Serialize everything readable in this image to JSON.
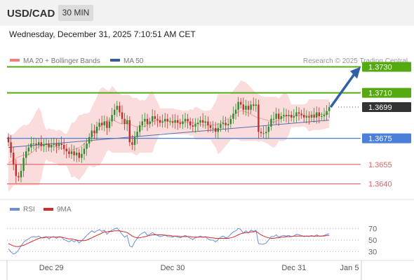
{
  "header": {
    "symbol": "USD/CAD",
    "timeframe": "30 MIN",
    "datetime": "Wednesday, December 31, 2025 7:10:51 AM CET"
  },
  "colors": {
    "price_line_green": "#55aa11",
    "support_blue": "#4a7fdc",
    "support_red": "#e06060",
    "candle_up": "#2e8b2e",
    "candle_down": "#c0302a",
    "bollinger_fill": "#f9d6d6",
    "ma50": "#5a6fa8",
    "arrow": "#2f5fa5",
    "rsi_line": "#6a8fd8",
    "rsi_ma": "#d22a2a",
    "current_price_bg": "#333333"
  },
  "chart_data": [
    {
      "type": "candlestick",
      "legend": [
        {
          "name": "MA 20 + Bollinger Bands",
          "color": "#f08080"
        },
        {
          "name": "MA 50",
          "color": "#3a5a9a"
        }
      ],
      "attribution": "Research © 2025 Trading Central",
      "ylim": [
        1.3628,
        1.3741
      ],
      "x_ticks": [
        {
          "label": "Dec 29",
          "index": 17
        },
        {
          "label": "Dec 30",
          "index": 65
        },
        {
          "label": "Dec 31",
          "index": 113
        },
        {
          "label": "Jan 5",
          "index": 135
        }
      ],
      "levels": [
        {
          "value": 1.373,
          "label": "1.3730",
          "kind": "resistance",
          "color": "#55aa11",
          "style": "label"
        },
        {
          "value": 1.371,
          "label": "1.3710",
          "kind": "resistance",
          "color": "#55aa11",
          "style": "label"
        },
        {
          "value": 1.3699,
          "label": "1.3699",
          "kind": "current",
          "color": "#333333",
          "style": "label"
        },
        {
          "value": 1.3675,
          "label": "1.3675",
          "kind": "support",
          "color": "#4a7fdc",
          "style": "label"
        },
        {
          "value": 1.3655,
          "label": "1.3655",
          "kind": "support",
          "color": "#e06060",
          "style": "text"
        },
        {
          "value": 1.364,
          "label": "1.3640",
          "kind": "support",
          "color": "#e06060",
          "style": "text"
        }
      ],
      "closes": [
        1.3672,
        1.3664,
        1.3655,
        1.3646,
        1.3645,
        1.365,
        1.366,
        1.3665,
        1.3668,
        1.3671,
        1.3671,
        1.367,
        1.3672,
        1.3669,
        1.367,
        1.3671,
        1.3668,
        1.367,
        1.3671,
        1.3669,
        1.3671,
        1.367,
        1.3667,
        1.3665,
        1.3663,
        1.3665,
        1.3662,
        1.3664,
        1.366,
        1.3663,
        1.3667,
        1.3671,
        1.3676,
        1.3681,
        1.3679,
        1.3684,
        1.3687,
        1.3685,
        1.3688,
        1.3683,
        1.3688,
        1.3693,
        1.3697,
        1.37,
        1.3695,
        1.369,
        1.3686,
        1.3689,
        1.3672,
        1.367,
        1.3676,
        1.368,
        1.3685,
        1.3688,
        1.369,
        1.3686,
        1.3688,
        1.3692,
        1.369,
        1.3689,
        1.3687,
        1.3688,
        1.369,
        1.3688,
        1.3688,
        1.3687,
        1.3689,
        1.3687,
        1.3686,
        1.3688,
        1.369,
        1.3688,
        1.3685,
        1.3684,
        1.3686,
        1.3687,
        1.3689,
        1.3687,
        1.3688,
        1.3685,
        1.3683,
        1.3683,
        1.368,
        1.3683,
        1.3686,
        1.3687,
        1.3685,
        1.3686,
        1.369,
        1.3694,
        1.3697,
        1.3703,
        1.3701,
        1.3697,
        1.37,
        1.3697,
        1.3701,
        1.37,
        1.3701,
        1.368,
        1.3679,
        1.3679,
        1.368,
        1.3684,
        1.369,
        1.369,
        1.3694,
        1.369,
        1.3692,
        1.3693,
        1.3692,
        1.3693,
        1.3691,
        1.3692,
        1.3695,
        1.3694,
        1.3693,
        1.3691,
        1.3692,
        1.3691,
        1.3693,
        1.3691,
        1.3695,
        1.3692,
        1.3692,
        1.3693,
        1.3696,
        1.3699
      ],
      "ma50_start": 1.3668,
      "ma50_end": 1.3689,
      "forecast_target": 1.373
    },
    {
      "type": "line",
      "legend": [
        {
          "name": "RSI",
          "color": "#6a8fd8"
        },
        {
          "name": "9MA",
          "color": "#d22a2a"
        }
      ],
      "y_ticks": [
        70,
        50,
        30
      ],
      "ylim": [
        20,
        80
      ],
      "series": [
        {
          "name": "RSI",
          "values": [
            35,
            30,
            26,
            28,
            33,
            40,
            46,
            50,
            52,
            55,
            56,
            55,
            57,
            54,
            55,
            56,
            52,
            55,
            56,
            53,
            56,
            55,
            51,
            49,
            47,
            50,
            47,
            50,
            45,
            49,
            53,
            58,
            62,
            66,
            63,
            66,
            68,
            65,
            67,
            60,
            64,
            67,
            69,
            71,
            66,
            60,
            55,
            58,
            40,
            38,
            47,
            53,
            59,
            62,
            64,
            58,
            60,
            63,
            60,
            58,
            56,
            57,
            59,
            56,
            56,
            55,
            57,
            55,
            54,
            56,
            58,
            56,
            53,
            51,
            54,
            55,
            57,
            55,
            56,
            52,
            50,
            50,
            47,
            51,
            55,
            57,
            54,
            55,
            60,
            64,
            66,
            70,
            68,
            62,
            66,
            62,
            67,
            65,
            67,
            44,
            43,
            43,
            45,
            50,
            56,
            56,
            59,
            55,
            57,
            58,
            57,
            58,
            56,
            57,
            60,
            59,
            58,
            56,
            57,
            56,
            58,
            56,
            59,
            57,
            57,
            58,
            60,
            61
          ]
        },
        {
          "name": "9MA",
          "values": [
            44,
            42,
            40,
            39,
            39,
            40,
            41,
            43,
            45,
            47,
            49,
            51,
            53,
            54,
            54,
            55,
            55,
            55,
            55,
            55,
            55,
            55,
            54,
            53,
            52,
            52,
            51,
            50,
            49,
            49,
            49,
            50,
            52,
            54,
            56,
            58,
            60,
            62,
            64,
            64,
            65,
            65,
            66,
            66,
            66,
            65,
            64,
            63,
            60,
            57,
            55,
            54,
            54,
            55,
            56,
            57,
            58,
            59,
            59,
            59,
            59,
            59,
            58,
            58,
            58,
            57,
            57,
            57,
            56,
            56,
            56,
            56,
            56,
            55,
            55,
            55,
            55,
            55,
            55,
            55,
            54,
            54,
            53,
            53,
            53,
            53,
            53,
            53,
            54,
            55,
            57,
            59,
            61,
            62,
            63,
            63,
            64,
            64,
            65,
            62,
            59,
            57,
            55,
            54,
            53,
            53,
            54,
            54,
            55,
            55,
            56,
            56,
            56,
            57,
            57,
            57,
            57,
            57,
            57,
            57,
            57,
            57,
            57,
            57,
            57,
            57,
            58,
            58
          ]
        }
      ]
    }
  ]
}
